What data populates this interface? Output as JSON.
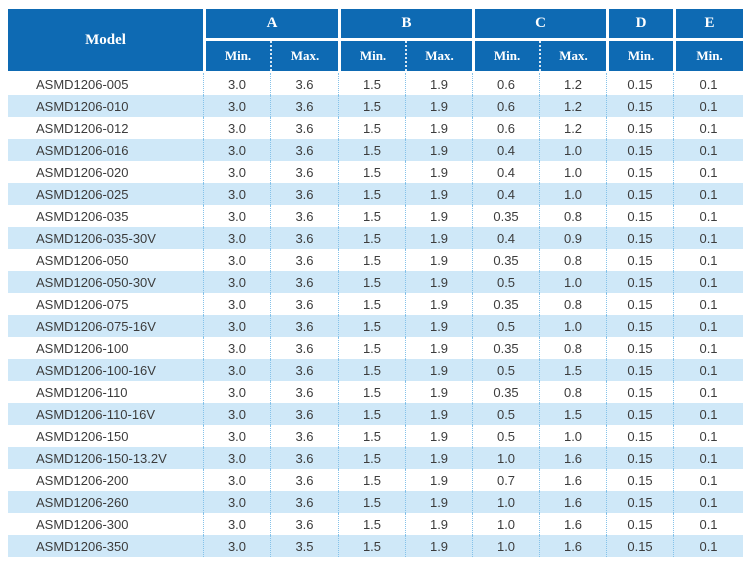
{
  "colors": {
    "header_bg": "#0e6ab3",
    "header_rule": "#1573bd",
    "row_stripe": "#cfe8f8",
    "divider": "#85c2e9",
    "body_text": "#3c3c3c"
  },
  "table": {
    "header": {
      "model": "Model",
      "groups": [
        {
          "label": "A",
          "subs": [
            "Min.",
            "Max."
          ]
        },
        {
          "label": "B",
          "subs": [
            "Min.",
            "Max."
          ]
        },
        {
          "label": "C",
          "subs": [
            "Min.",
            "Max."
          ]
        },
        {
          "label": "D",
          "subs": [
            "Min."
          ]
        },
        {
          "label": "E",
          "subs": [
            "Min."
          ]
        }
      ]
    },
    "rows": [
      [
        "ASMD1206-005",
        "3.0",
        "3.6",
        "1.5",
        "1.9",
        "0.6",
        "1.2",
        "0.15",
        "0.1"
      ],
      [
        "ASMD1206-010",
        "3.0",
        "3.6",
        "1.5",
        "1.9",
        "0.6",
        "1.2",
        "0.15",
        "0.1"
      ],
      [
        "ASMD1206-012",
        "3.0",
        "3.6",
        "1.5",
        "1.9",
        "0.6",
        "1.2",
        "0.15",
        "0.1"
      ],
      [
        "ASMD1206-016",
        "3.0",
        "3.6",
        "1.5",
        "1.9",
        "0.4",
        "1.0",
        "0.15",
        "0.1"
      ],
      [
        "ASMD1206-020",
        "3.0",
        "3.6",
        "1.5",
        "1.9",
        "0.4",
        "1.0",
        "0.15",
        "0.1"
      ],
      [
        "ASMD1206-025",
        "3.0",
        "3.6",
        "1.5",
        "1.9",
        "0.4",
        "1.0",
        "0.15",
        "0.1"
      ],
      [
        "ASMD1206-035",
        "3.0",
        "3.6",
        "1.5",
        "1.9",
        "0.35",
        "0.8",
        "0.15",
        "0.1"
      ],
      [
        "ASMD1206-035-30V",
        "3.0",
        "3.6",
        "1.5",
        "1.9",
        "0.4",
        "0.9",
        "0.15",
        "0.1"
      ],
      [
        "ASMD1206-050",
        "3.0",
        "3.6",
        "1.5",
        "1.9",
        "0.35",
        "0.8",
        "0.15",
        "0.1"
      ],
      [
        "ASMD1206-050-30V",
        "3.0",
        "3.6",
        "1.5",
        "1.9",
        "0.5",
        "1.0",
        "0.15",
        "0.1"
      ],
      [
        "ASMD1206-075",
        "3.0",
        "3.6",
        "1.5",
        "1.9",
        "0.35",
        "0.8",
        "0.15",
        "0.1"
      ],
      [
        "ASMD1206-075-16V",
        "3.0",
        "3.6",
        "1.5",
        "1.9",
        "0.5",
        "1.0",
        "0.15",
        "0.1"
      ],
      [
        "ASMD1206-100",
        "3.0",
        "3.6",
        "1.5",
        "1.9",
        "0.35",
        "0.8",
        "0.15",
        "0.1"
      ],
      [
        "ASMD1206-100-16V",
        "3.0",
        "3.6",
        "1.5",
        "1.9",
        "0.5",
        "1.5",
        "0.15",
        "0.1"
      ],
      [
        "ASMD1206-110",
        "3.0",
        "3.6",
        "1.5",
        "1.9",
        "0.35",
        "0.8",
        "0.15",
        "0.1"
      ],
      [
        "ASMD1206-110-16V",
        "3.0",
        "3.6",
        "1.5",
        "1.9",
        "0.5",
        "1.5",
        "0.15",
        "0.1"
      ],
      [
        "ASMD1206-150",
        "3.0",
        "3.6",
        "1.5",
        "1.9",
        "0.5",
        "1.0",
        "0.15",
        "0.1"
      ],
      [
        "ASMD1206-150-13.2V",
        "3.0",
        "3.6",
        "1.5",
        "1.9",
        "1.0",
        "1.6",
        "0.15",
        "0.1"
      ],
      [
        "ASMD1206-200",
        "3.0",
        "3.6",
        "1.5",
        "1.9",
        "0.7",
        "1.6",
        "0.15",
        "0.1"
      ],
      [
        "ASMD1206-260",
        "3.0",
        "3.6",
        "1.5",
        "1.9",
        "1.0",
        "1.6",
        "0.15",
        "0.1"
      ],
      [
        "ASMD1206-300",
        "3.0",
        "3.6",
        "1.5",
        "1.9",
        "1.0",
        "1.6",
        "0.15",
        "0.1"
      ],
      [
        "ASMD1206-350",
        "3.0",
        "3.5",
        "1.5",
        "1.9",
        "1.0",
        "1.6",
        "0.15",
        "0.1"
      ]
    ]
  }
}
